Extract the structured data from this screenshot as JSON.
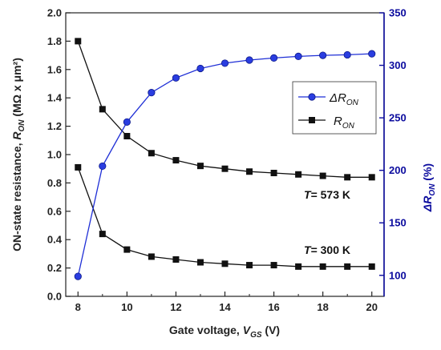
{
  "chart_data": {
    "type": "line",
    "x": [
      8,
      9,
      10,
      11,
      12,
      13,
      14,
      15,
      16,
      17,
      18,
      19,
      20
    ],
    "xlim": [
      7.5,
      20.5
    ],
    "xticks": [
      8,
      10,
      12,
      14,
      16,
      18,
      20
    ],
    "xlabel": {
      "main": "Gate voltage, ",
      "symbol": "V",
      "sub": "GS",
      "unit": " (V)"
    },
    "ylim_left": [
      0.0,
      2.0
    ],
    "yticks_left": [
      0.0,
      0.2,
      0.4,
      0.6,
      0.8,
      1.0,
      1.2,
      1.4,
      1.6,
      1.8,
      2.0
    ],
    "ylabel_left": {
      "main": "ON-state resistance, ",
      "symbol": "R",
      "sub": "ON",
      "unit": " (MΩ x μm²)"
    },
    "ylim_right": [
      80,
      350
    ],
    "yticks_right": [
      100,
      150,
      200,
      250,
      300,
      350
    ],
    "ylabel_right": {
      "symbol": "ΔR",
      "sub": "ON",
      "unit": " (%)"
    },
    "series": [
      {
        "name": "R_ON",
        "condition": "T = 573 K",
        "axis": "left",
        "marker": "square",
        "color": "#111111",
        "values": [
          1.8,
          1.32,
          1.13,
          1.01,
          0.96,
          0.92,
          0.9,
          0.88,
          0.87,
          0.86,
          0.85,
          0.84,
          0.84
        ]
      },
      {
        "name": "R_ON",
        "condition": "T = 300 K",
        "axis": "left",
        "marker": "square",
        "color": "#111111",
        "values": [
          0.91,
          0.44,
          0.33,
          0.28,
          0.26,
          0.24,
          0.23,
          0.22,
          0.22,
          0.21,
          0.21,
          0.21,
          0.21
        ]
      },
      {
        "name": "ΔR_ON",
        "axis": "right",
        "marker": "circle",
        "color": "#1f2fd6",
        "values": [
          99,
          204,
          246,
          274,
          288,
          297,
          302,
          305,
          307,
          308.5,
          309.5,
          310,
          311
        ]
      }
    ],
    "legend": {
      "position": "top-right",
      "entries": [
        {
          "symbol": "ΔR",
          "sub": "ON",
          "marker": "circle",
          "color": "#1f2fd6"
        },
        {
          "symbol": "R",
          "sub": "ON",
          "marker": "square",
          "color": "#111111"
        }
      ]
    },
    "annotations": [
      {
        "prefix": "T",
        "text": "= 573 K"
      },
      {
        "prefix": "T",
        "text": "= 300 K"
      }
    ],
    "colors": {
      "left_axis": "#111111",
      "right_axis": "#0b0b9e",
      "delta_series": "#1f2fd6",
      "r_series": "#111111"
    },
    "grid": false
  }
}
